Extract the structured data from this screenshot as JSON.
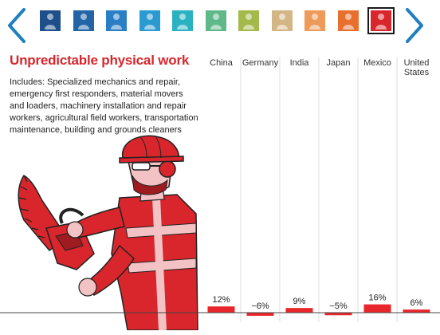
{
  "nav": {
    "prev_icon": "chevron-left-icon",
    "next_icon": "chevron-right-icon",
    "accent": "#1f7fc0",
    "thumbnails": [
      {
        "icon": "worker-thumbnail-icon",
        "color": "#1e4f8a"
      },
      {
        "icon": "worker-thumbnail-icon",
        "color": "#2264a6"
      },
      {
        "icon": "worker-thumbnail-icon",
        "color": "#2a7ec4"
      },
      {
        "icon": "worker-thumbnail-icon",
        "color": "#2a9ad0"
      },
      {
        "icon": "worker-thumbnail-icon",
        "color": "#2bb2c2"
      },
      {
        "icon": "worker-thumbnail-icon",
        "color": "#5fb88a"
      },
      {
        "icon": "worker-thumbnail-icon",
        "color": "#a3b94a"
      },
      {
        "icon": "worker-thumbnail-icon",
        "color": "#d4b585"
      },
      {
        "icon": "worker-thumbnail-icon",
        "color": "#ee9a5a"
      },
      {
        "icon": "worker-thumbnail-icon",
        "color": "#e8702f"
      },
      {
        "icon": "worker-thumbnail-icon",
        "color": "#d8262c",
        "selected": true
      }
    ]
  },
  "panel": {
    "title": "Unpredictable physical work",
    "description": "Includes: Specialized mechanics and repair, emergency first responders, material movers and loaders, machinery installation and repair workers, agricultural field workers, transportation maintenance, building and grounds cleaners",
    "illustration_icon": "chainsaw-worker-icon",
    "accent": "#d8262c"
  },
  "chart_data": {
    "type": "bar",
    "categories": [
      "China",
      "Germany",
      "India",
      "Japan",
      "Mexico",
      "United States"
    ],
    "values": [
      12,
      -6,
      9,
      -5,
      16,
      6
    ],
    "data_labels": [
      "12%",
      "−6%",
      "9%",
      "−5%",
      "16%",
      "6%"
    ],
    "title": "Unpredictable physical work",
    "xlabel": "",
    "ylabel": "",
    "grid": false,
    "legend": "none",
    "bar_color": "#e8262c",
    "ylim": [
      -8,
      18
    ]
  }
}
